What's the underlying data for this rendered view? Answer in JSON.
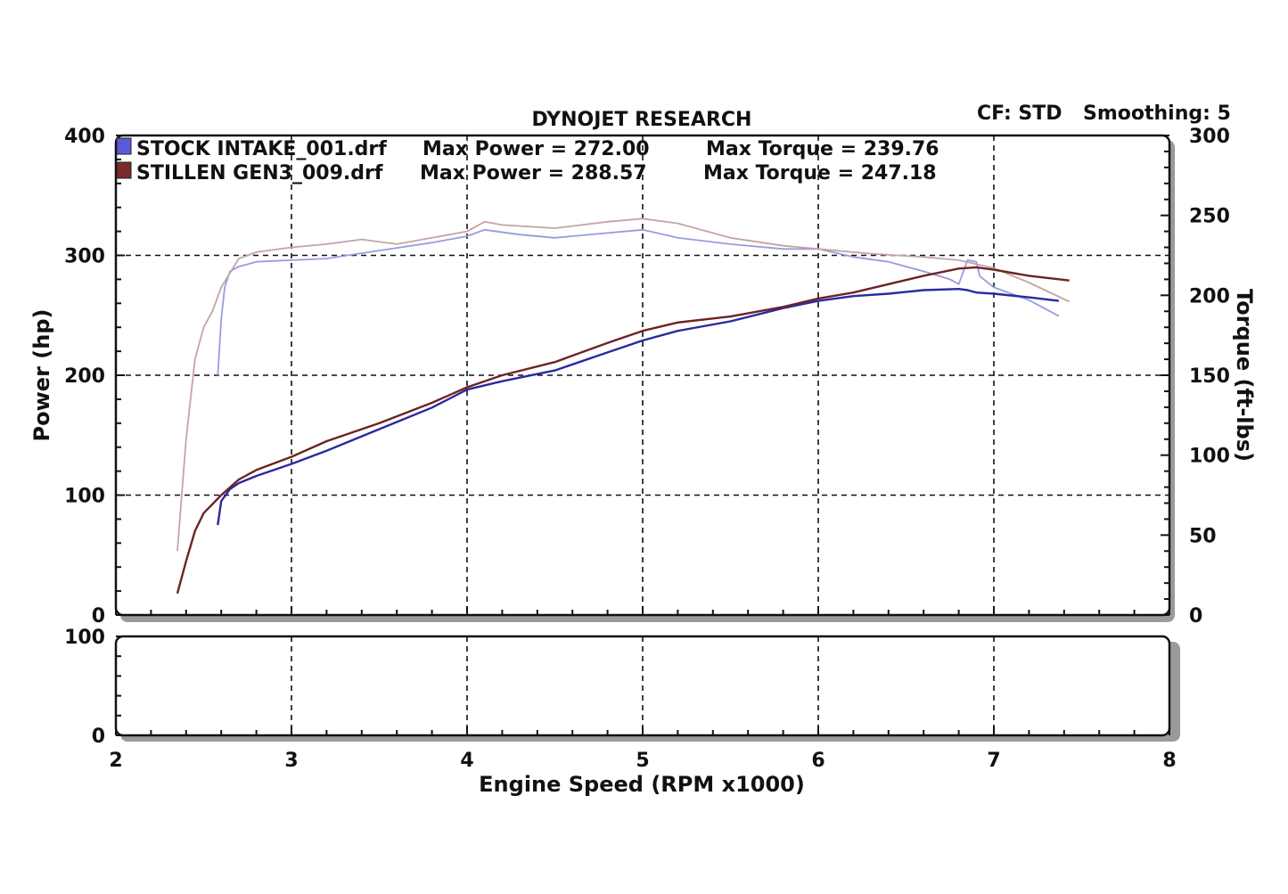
{
  "header": {
    "title": "DYNOJET RESEARCH",
    "cf": "CF: STD",
    "smoothing": "Smoothing: 5"
  },
  "chart_data": {
    "type": "line",
    "title": "DYNOJET RESEARCH",
    "xlabel": "Engine Speed (RPM x1000)",
    "ylabel": "Power (hp)",
    "y2label": "Torque (ft-lbs)",
    "xlim": [
      2,
      8
    ],
    "ylim": [
      0,
      400
    ],
    "y2lim": [
      0,
      300
    ],
    "xticks": [
      "2",
      "3",
      "4",
      "5",
      "6",
      "7",
      "8"
    ],
    "yticks": [
      "0",
      "100",
      "200",
      "300",
      "400"
    ],
    "y2ticks": [
      "0",
      "50",
      "100",
      "150",
      "200",
      "250",
      "300"
    ],
    "lower_panel": {
      "ylim": [
        0,
        100
      ],
      "yticks": [
        "0",
        "100"
      ]
    },
    "grid": true,
    "legend_position": "top-left",
    "legend": [
      {
        "file": "STOCK INTAKE_001.drf",
        "power_label": "Max Power = 272.00",
        "torque_label": "Max Torque = 239.76",
        "color": "#3a3ab4"
      },
      {
        "file": "STILLEN GEN3_009.drf",
        "power_label": "Max Power = 288.57",
        "torque_label": "Max Torque = 247.18",
        "color": "#6b2424"
      }
    ],
    "series": [
      {
        "name": "STOCK INTAKE_001.drf",
        "kind": "power",
        "axis": "left",
        "color": "#2a2aa0",
        "x": [
          2.58,
          2.6,
          2.65,
          2.7,
          2.8,
          3.0,
          3.2,
          3.5,
          3.8,
          4.0,
          4.2,
          4.5,
          4.8,
          5.0,
          5.2,
          5.5,
          5.8,
          6.0,
          6.2,
          6.4,
          6.6,
          6.8,
          6.85,
          6.9,
          7.0,
          7.2,
          7.37
        ],
        "y": [
          75,
          95,
          105,
          110,
          116,
          126,
          137,
          155,
          173,
          188,
          195,
          204,
          219,
          229,
          237,
          245,
          256,
          262,
          266,
          268,
          271,
          272,
          271,
          269,
          268,
          265,
          262
        ]
      },
      {
        "name": "STILLEN GEN3_009.drf",
        "kind": "power",
        "axis": "left",
        "color": "#6b2424",
        "x": [
          2.35,
          2.4,
          2.45,
          2.5,
          2.6,
          2.7,
          2.8,
          3.0,
          3.2,
          3.5,
          3.8,
          4.0,
          4.2,
          4.5,
          4.8,
          5.0,
          5.2,
          5.5,
          5.8,
          6.0,
          6.2,
          6.4,
          6.6,
          6.8,
          6.9,
          7.0,
          7.2,
          7.43
        ],
        "y": [
          18,
          45,
          70,
          85,
          100,
          113,
          121,
          132,
          145,
          160,
          177,
          190,
          200,
          211,
          227,
          237,
          244,
          249,
          257,
          264,
          269,
          276,
          283,
          289,
          290,
          288,
          283,
          279
        ]
      },
      {
        "name": "STOCK INTAKE_001.drf",
        "kind": "torque",
        "axis": "right",
        "color": "#9a9ae0",
        "x": [
          2.58,
          2.6,
          2.62,
          2.65,
          2.7,
          2.8,
          3.0,
          3.2,
          3.5,
          3.8,
          4.0,
          4.1,
          4.3,
          4.5,
          4.8,
          5.0,
          5.2,
          5.5,
          5.8,
          6.0,
          6.2,
          6.4,
          6.6,
          6.75,
          6.8,
          6.85,
          6.9,
          6.92,
          7.0,
          7.2,
          7.37
        ],
        "y": [
          150,
          185,
          205,
          215,
          218,
          221,
          222,
          223,
          228,
          233,
          237,
          241,
          238,
          236,
          239,
          241,
          236,
          232,
          229,
          229,
          224,
          221,
          215,
          210,
          207,
          222,
          221,
          212,
          205,
          197,
          187
        ]
      },
      {
        "name": "STILLEN GEN3_009.drf",
        "kind": "torque",
        "axis": "right",
        "color": "#c4a4a4",
        "x": [
          2.35,
          2.4,
          2.45,
          2.5,
          2.55,
          2.6,
          2.7,
          2.8,
          3.0,
          3.2,
          3.4,
          3.6,
          3.8,
          4.0,
          4.1,
          4.2,
          4.5,
          4.8,
          5.0,
          5.2,
          5.5,
          5.8,
          6.0,
          6.3,
          6.6,
          6.8,
          7.0,
          7.2,
          7.43
        ],
        "y": [
          40,
          110,
          160,
          180,
          190,
          205,
          223,
          227,
          230,
          232,
          235,
          232,
          236,
          240,
          246,
          244,
          242,
          246,
          248,
          245,
          236,
          231,
          229,
          226,
          224,
          222,
          217,
          208,
          196
        ]
      }
    ]
  }
}
